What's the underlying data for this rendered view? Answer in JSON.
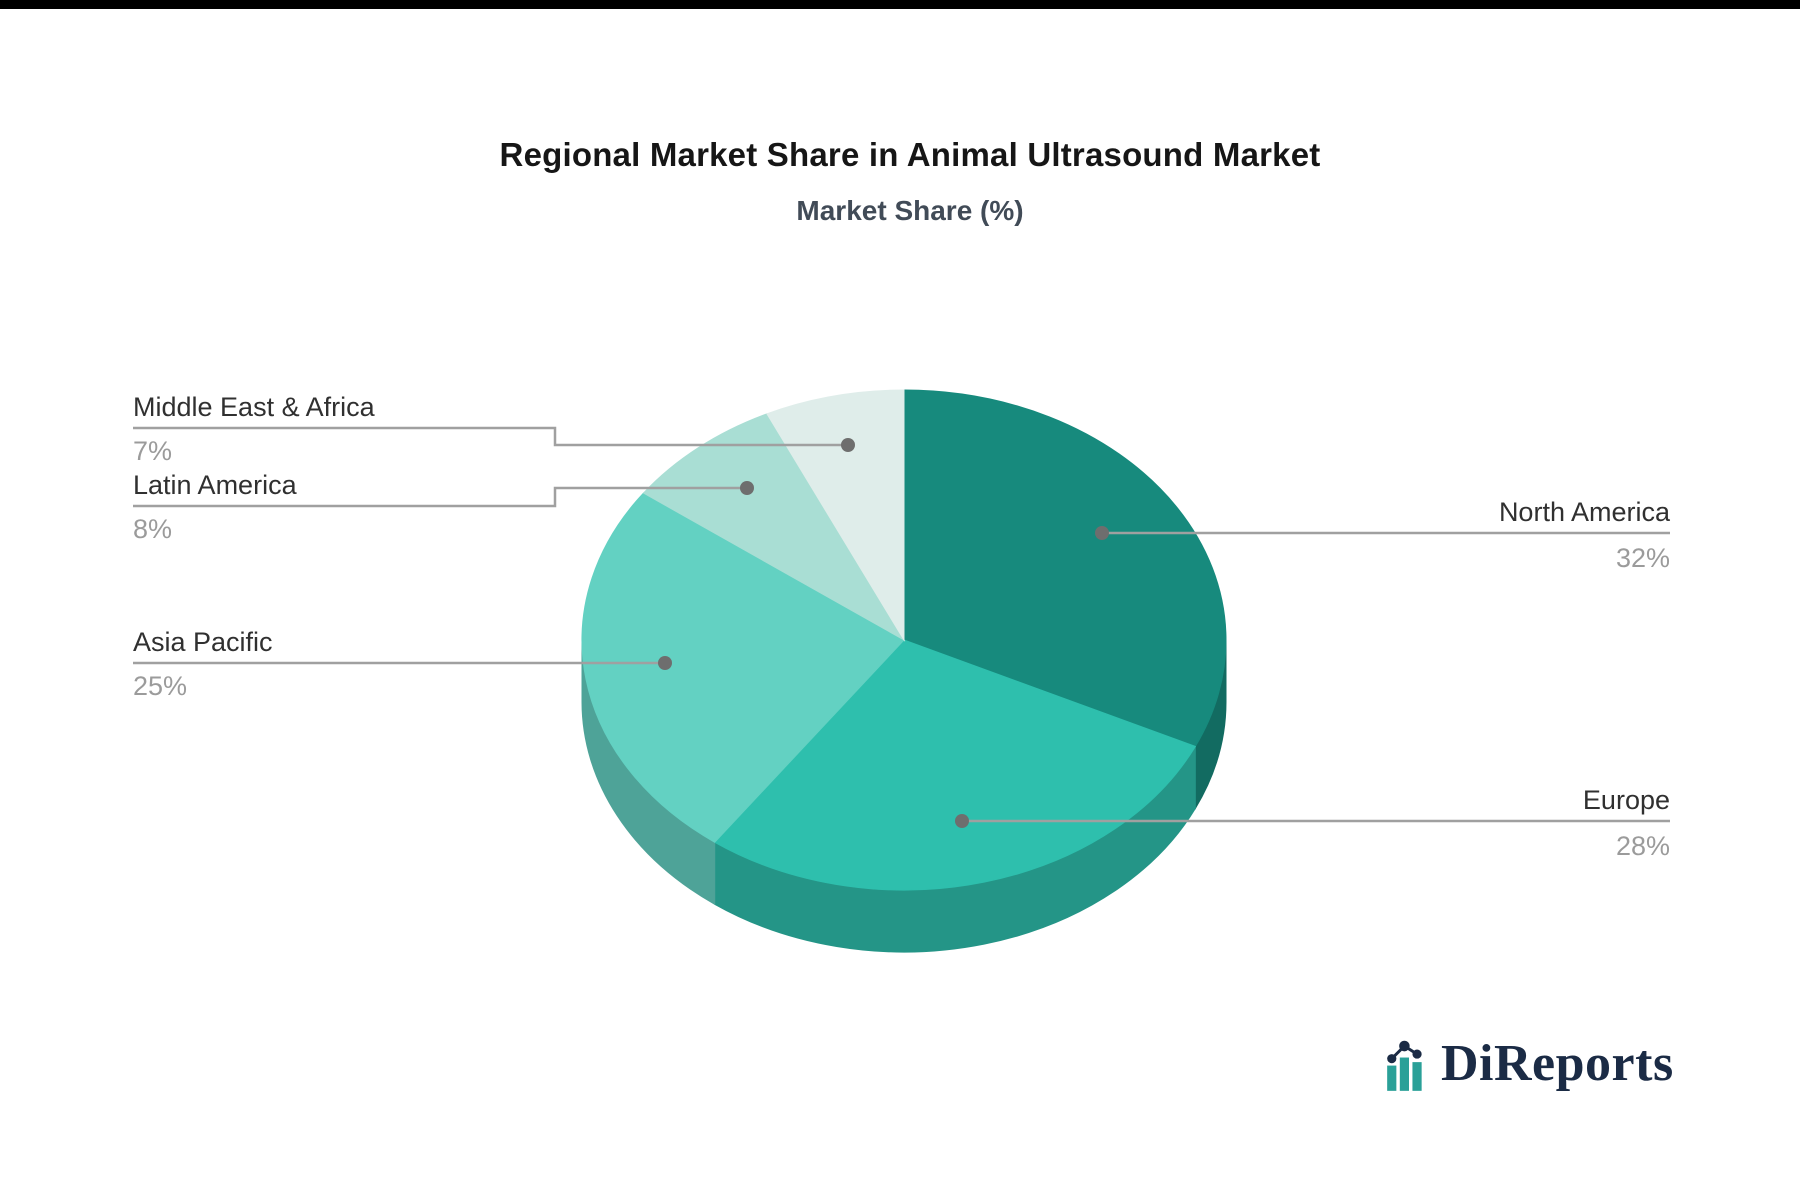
{
  "chart_data": {
    "type": "pie",
    "style": "3d",
    "title": "Regional Market Share in Animal Ultrasound Market",
    "subtitle": "Market Share (%)",
    "unit": "%",
    "start_angle_deg": 0,
    "direction": "clockwise",
    "legend_position": "callouts",
    "categories": [
      "North America",
      "Europe",
      "Asia Pacific",
      "Latin America",
      "Middle East & Africa"
    ],
    "values": [
      32,
      28,
      25,
      8,
      7
    ],
    "slices": [
      {
        "label": "North America",
        "value": 32,
        "pct_label": "32%",
        "color": "#178A7D",
        "side_color": "#126B61"
      },
      {
        "label": "Europe",
        "value": 28,
        "pct_label": "28%",
        "color": "#2EBFAD",
        "side_color": "#249587"
      },
      {
        "label": "Asia Pacific",
        "value": 25,
        "pct_label": "25%",
        "color": "#63D1C2",
        "side_color": "#4EA398"
      },
      {
        "label": "Latin America",
        "value": 8,
        "pct_label": "8%",
        "color": "#A9DED4",
        "side_color": "#84ADA5"
      },
      {
        "label": "Middle East & Africa",
        "value": 7,
        "pct_label": "7%",
        "color": "#DFEDEA",
        "side_color": "#AEB9B7"
      }
    ],
    "callout_line_color": "#A0A0A0",
    "callout_dot_color": "#6E6E6E",
    "label_color": "#303030",
    "pct_color": "#9B9B9B",
    "background_color": "#FFFFFF"
  },
  "branding": {
    "logo_text": "DiReports",
    "logo_icon": "bar-line-chart-icon",
    "logo_text_color": "#1B2B45",
    "logo_accent_color": "#2AA098"
  }
}
